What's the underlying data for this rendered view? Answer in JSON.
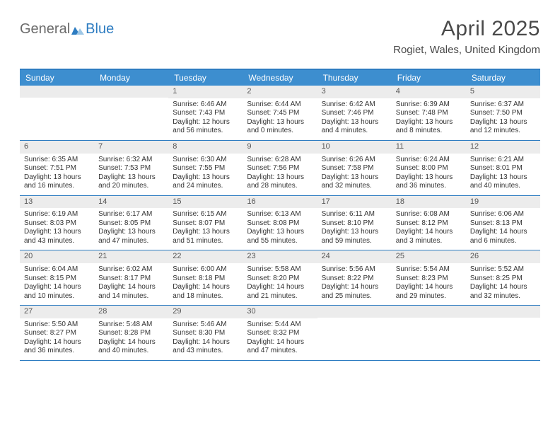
{
  "brand": {
    "word1": "General",
    "word2": "Blue"
  },
  "title": "April 2025",
  "location": "Rogiet, Wales, United Kingdom",
  "colors": {
    "header_bar": "#3d8ecf",
    "rule": "#2d7cc1",
    "daynum_bg": "#ececec",
    "text": "#333333",
    "logo_gray": "#6b6b6b",
    "logo_blue": "#2d7cc1"
  },
  "dow": [
    "Sunday",
    "Monday",
    "Tuesday",
    "Wednesday",
    "Thursday",
    "Friday",
    "Saturday"
  ],
  "weeks": [
    [
      null,
      null,
      {
        "n": "1",
        "sr": "Sunrise: 6:46 AM",
        "ss": "Sunset: 7:43 PM",
        "d1": "Daylight: 12 hours",
        "d2": "and 56 minutes."
      },
      {
        "n": "2",
        "sr": "Sunrise: 6:44 AM",
        "ss": "Sunset: 7:45 PM",
        "d1": "Daylight: 13 hours",
        "d2": "and 0 minutes."
      },
      {
        "n": "3",
        "sr": "Sunrise: 6:42 AM",
        "ss": "Sunset: 7:46 PM",
        "d1": "Daylight: 13 hours",
        "d2": "and 4 minutes."
      },
      {
        "n": "4",
        "sr": "Sunrise: 6:39 AM",
        "ss": "Sunset: 7:48 PM",
        "d1": "Daylight: 13 hours",
        "d2": "and 8 minutes."
      },
      {
        "n": "5",
        "sr": "Sunrise: 6:37 AM",
        "ss": "Sunset: 7:50 PM",
        "d1": "Daylight: 13 hours",
        "d2": "and 12 minutes."
      }
    ],
    [
      {
        "n": "6",
        "sr": "Sunrise: 6:35 AM",
        "ss": "Sunset: 7:51 PM",
        "d1": "Daylight: 13 hours",
        "d2": "and 16 minutes."
      },
      {
        "n": "7",
        "sr": "Sunrise: 6:32 AM",
        "ss": "Sunset: 7:53 PM",
        "d1": "Daylight: 13 hours",
        "d2": "and 20 minutes."
      },
      {
        "n": "8",
        "sr": "Sunrise: 6:30 AM",
        "ss": "Sunset: 7:55 PM",
        "d1": "Daylight: 13 hours",
        "d2": "and 24 minutes."
      },
      {
        "n": "9",
        "sr": "Sunrise: 6:28 AM",
        "ss": "Sunset: 7:56 PM",
        "d1": "Daylight: 13 hours",
        "d2": "and 28 minutes."
      },
      {
        "n": "10",
        "sr": "Sunrise: 6:26 AM",
        "ss": "Sunset: 7:58 PM",
        "d1": "Daylight: 13 hours",
        "d2": "and 32 minutes."
      },
      {
        "n": "11",
        "sr": "Sunrise: 6:24 AM",
        "ss": "Sunset: 8:00 PM",
        "d1": "Daylight: 13 hours",
        "d2": "and 36 minutes."
      },
      {
        "n": "12",
        "sr": "Sunrise: 6:21 AM",
        "ss": "Sunset: 8:01 PM",
        "d1": "Daylight: 13 hours",
        "d2": "and 40 minutes."
      }
    ],
    [
      {
        "n": "13",
        "sr": "Sunrise: 6:19 AM",
        "ss": "Sunset: 8:03 PM",
        "d1": "Daylight: 13 hours",
        "d2": "and 43 minutes."
      },
      {
        "n": "14",
        "sr": "Sunrise: 6:17 AM",
        "ss": "Sunset: 8:05 PM",
        "d1": "Daylight: 13 hours",
        "d2": "and 47 minutes."
      },
      {
        "n": "15",
        "sr": "Sunrise: 6:15 AM",
        "ss": "Sunset: 8:07 PM",
        "d1": "Daylight: 13 hours",
        "d2": "and 51 minutes."
      },
      {
        "n": "16",
        "sr": "Sunrise: 6:13 AM",
        "ss": "Sunset: 8:08 PM",
        "d1": "Daylight: 13 hours",
        "d2": "and 55 minutes."
      },
      {
        "n": "17",
        "sr": "Sunrise: 6:11 AM",
        "ss": "Sunset: 8:10 PM",
        "d1": "Daylight: 13 hours",
        "d2": "and 59 minutes."
      },
      {
        "n": "18",
        "sr": "Sunrise: 6:08 AM",
        "ss": "Sunset: 8:12 PM",
        "d1": "Daylight: 14 hours",
        "d2": "and 3 minutes."
      },
      {
        "n": "19",
        "sr": "Sunrise: 6:06 AM",
        "ss": "Sunset: 8:13 PM",
        "d1": "Daylight: 14 hours",
        "d2": "and 6 minutes."
      }
    ],
    [
      {
        "n": "20",
        "sr": "Sunrise: 6:04 AM",
        "ss": "Sunset: 8:15 PM",
        "d1": "Daylight: 14 hours",
        "d2": "and 10 minutes."
      },
      {
        "n": "21",
        "sr": "Sunrise: 6:02 AM",
        "ss": "Sunset: 8:17 PM",
        "d1": "Daylight: 14 hours",
        "d2": "and 14 minutes."
      },
      {
        "n": "22",
        "sr": "Sunrise: 6:00 AM",
        "ss": "Sunset: 8:18 PM",
        "d1": "Daylight: 14 hours",
        "d2": "and 18 minutes."
      },
      {
        "n": "23",
        "sr": "Sunrise: 5:58 AM",
        "ss": "Sunset: 8:20 PM",
        "d1": "Daylight: 14 hours",
        "d2": "and 21 minutes."
      },
      {
        "n": "24",
        "sr": "Sunrise: 5:56 AM",
        "ss": "Sunset: 8:22 PM",
        "d1": "Daylight: 14 hours",
        "d2": "and 25 minutes."
      },
      {
        "n": "25",
        "sr": "Sunrise: 5:54 AM",
        "ss": "Sunset: 8:23 PM",
        "d1": "Daylight: 14 hours",
        "d2": "and 29 minutes."
      },
      {
        "n": "26",
        "sr": "Sunrise: 5:52 AM",
        "ss": "Sunset: 8:25 PM",
        "d1": "Daylight: 14 hours",
        "d2": "and 32 minutes."
      }
    ],
    [
      {
        "n": "27",
        "sr": "Sunrise: 5:50 AM",
        "ss": "Sunset: 8:27 PM",
        "d1": "Daylight: 14 hours",
        "d2": "and 36 minutes."
      },
      {
        "n": "28",
        "sr": "Sunrise: 5:48 AM",
        "ss": "Sunset: 8:28 PM",
        "d1": "Daylight: 14 hours",
        "d2": "and 40 minutes."
      },
      {
        "n": "29",
        "sr": "Sunrise: 5:46 AM",
        "ss": "Sunset: 8:30 PM",
        "d1": "Daylight: 14 hours",
        "d2": "and 43 minutes."
      },
      {
        "n": "30",
        "sr": "Sunrise: 5:44 AM",
        "ss": "Sunset: 8:32 PM",
        "d1": "Daylight: 14 hours",
        "d2": "and 47 minutes."
      },
      null,
      null,
      null
    ]
  ]
}
